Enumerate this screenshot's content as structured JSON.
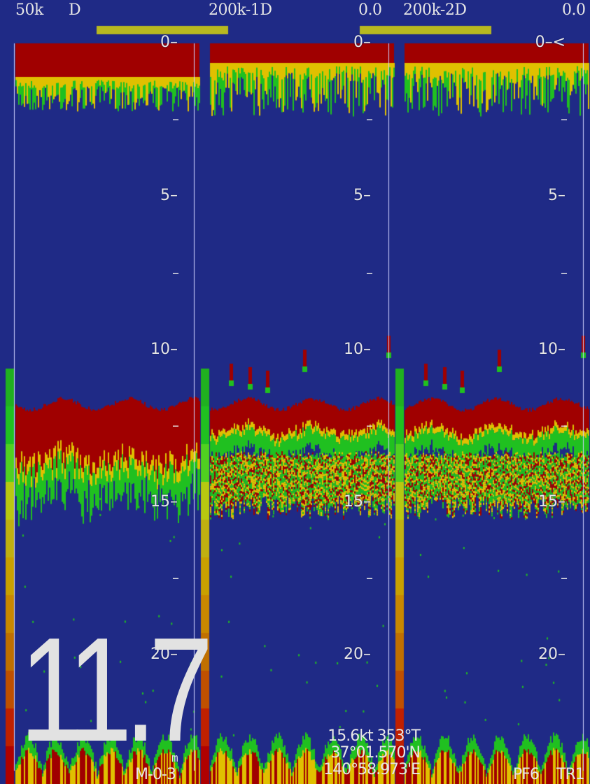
{
  "header": {
    "freq_left": "50k",
    "mode_left": "D",
    "freq_mid": "200k-1D",
    "offset_mid": "0.0",
    "freq_right": "200k-2D",
    "offset_right": "0.0"
  },
  "scale": {
    "ticks": [
      "0",
      "5",
      "10",
      "15",
      "20"
    ],
    "top_marker": "<"
  },
  "depth_display": {
    "value": "11.7",
    "unit": "m"
  },
  "footer": {
    "left_code": "M-0-3",
    "right_code": "PF6",
    "right_code2": "TR1"
  },
  "nav": {
    "speed_heading": "15.6kt 353°T",
    "latitude": "37°01.570'N",
    "longitude": "140°58.973'E"
  },
  "colors": {
    "background": "#1f2a86",
    "strong_echo": "#a00000",
    "medium_echo": "#e0c000",
    "weak_echo": "#20c020",
    "range_bar": "#b8b820"
  }
}
